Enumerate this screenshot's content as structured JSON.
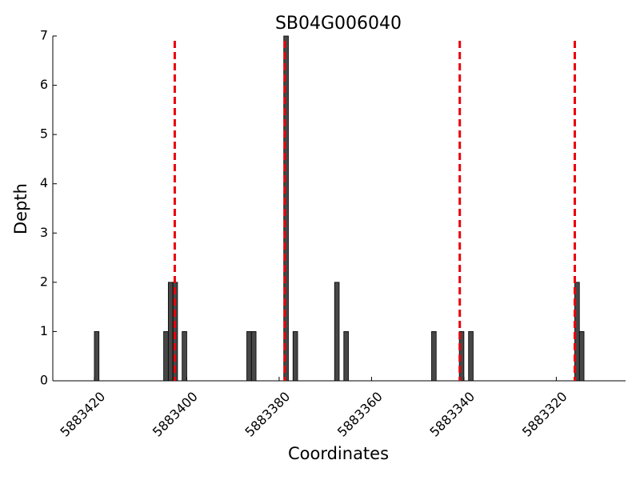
{
  "chart_data": {
    "type": "bar",
    "title": "SB04G006040",
    "x_label": "Coordinates",
    "y_label": "Depth",
    "x": [
      5883420,
      5883405,
      5883404,
      5883403,
      5883401,
      5883387,
      5883386,
      5883379,
      5883377,
      5883368,
      5883366,
      5883347,
      5883341,
      5883339,
      5883316,
      5883315
    ],
    "values": [
      1,
      1,
      2,
      2,
      1,
      1,
      1,
      7,
      1,
      2,
      1,
      1,
      1,
      1,
      2,
      1
    ],
    "color": "#474747",
    "vlines": [
      5883402.6,
      5883378.8,
      5883340.9,
      5883316
    ],
    "vline_color": "#e8000b",
    "xlim": [
      5883429,
      5883305
    ],
    "xticks": [
      5883420,
      5883400,
      5883380,
      5883360,
      5883340,
      5883320
    ],
    "ylim": [
      0,
      7
    ],
    "yticks": [
      0,
      1,
      2,
      3,
      4,
      5,
      6,
      7
    ]
  }
}
